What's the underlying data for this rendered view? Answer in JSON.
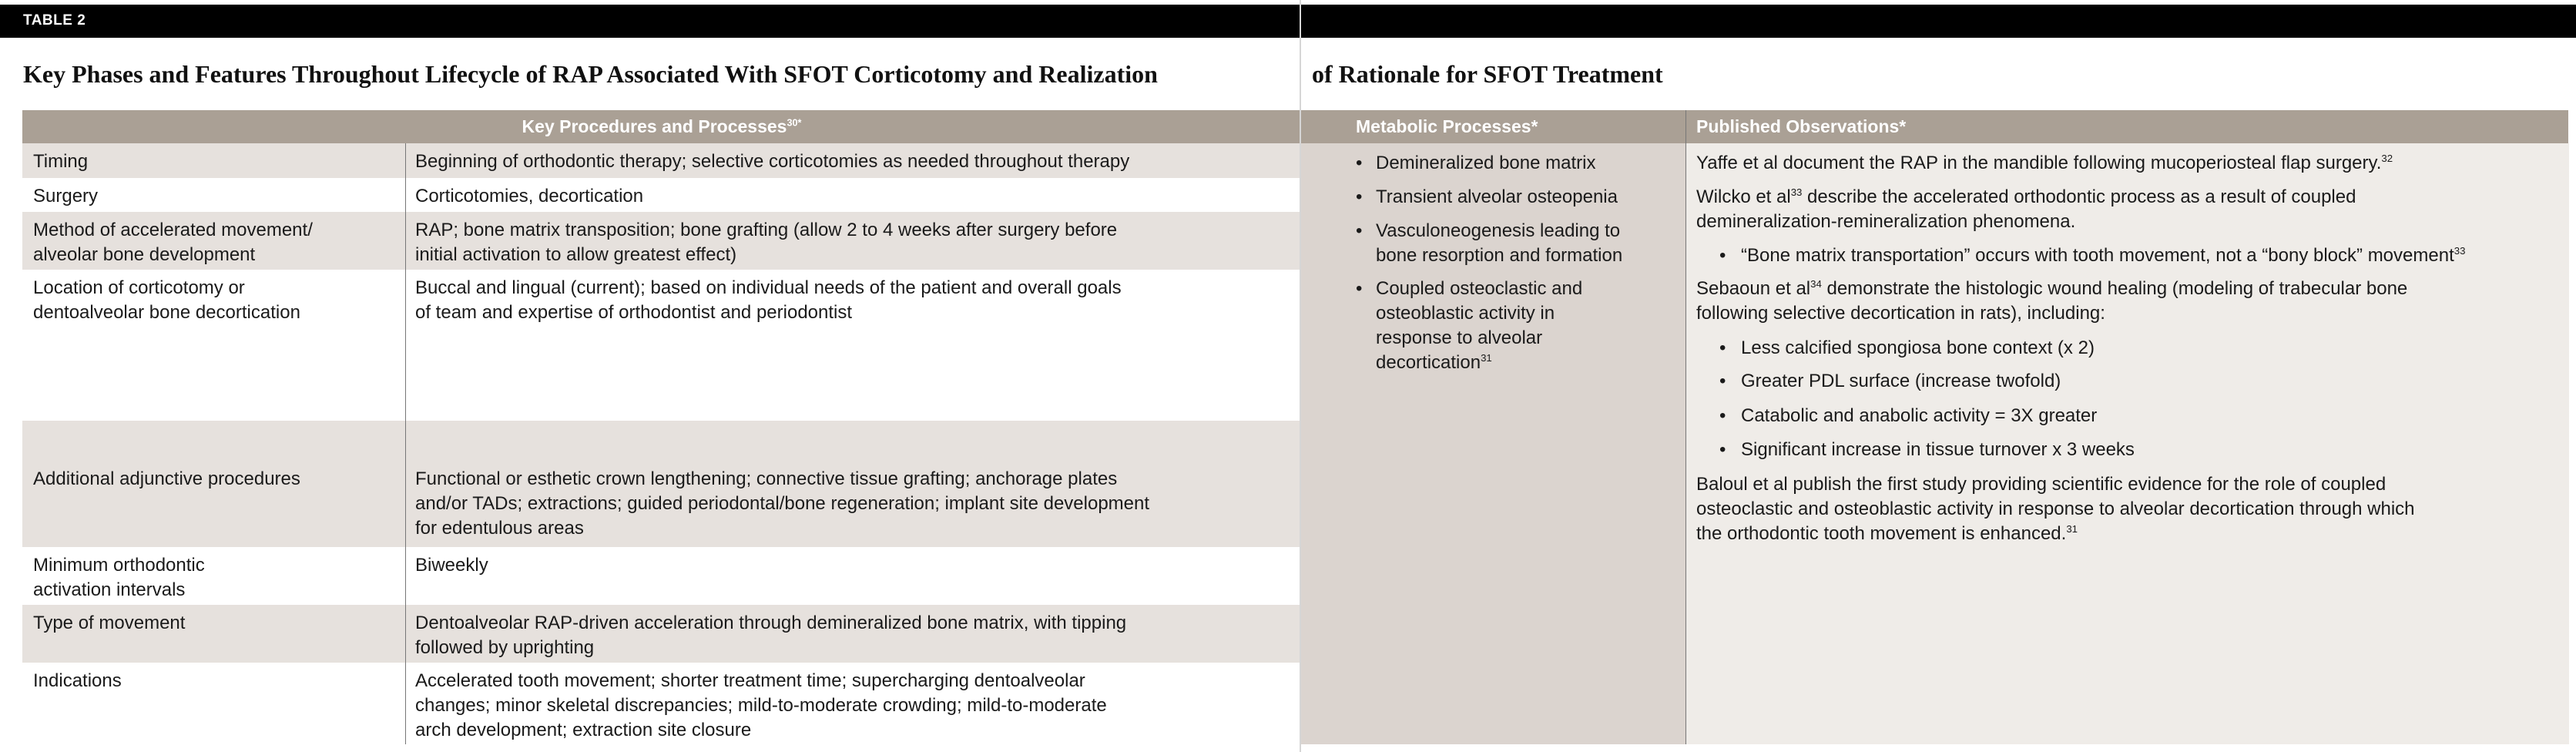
{
  "table_label": "TABLE 2",
  "title_left": "Key Phases and Features Throughout Lifecycle of RAP Associated With SFOT Corticotomy and Realization",
  "title_right": "of Rationale for SFOT Treatment",
  "bullet": "•",
  "left_table": {
    "header": {
      "text": "Key Procedures and Processes",
      "sup": "30*"
    },
    "rows": [
      {
        "label": "Timing",
        "value": "Beginning of orthodontic therapy; selective corticotomies as needed throughout therapy"
      },
      {
        "label": "Surgery",
        "value": "Corticotomies, decortication"
      },
      {
        "label": "Method of accelerated movement/\nalveolar bone development",
        "value": "RAP; bone matrix transposition; bone grafting (allow 2 to 4 weeks after surgery before\ninitial activation to allow greatest effect)"
      },
      {
        "label": "Location of corticotomy or\ndentoalveolar bone decortication",
        "value": "Buccal and lingual (current); based on individual needs of the patient and overall goals\nof team and expertise of orthodontist and periodontist"
      },
      {
        "label": "Additional adjunctive procedures",
        "value": "Functional or esthetic crown lengthening; connective tissue grafting; anchorage plates\nand/or TADs; extractions; guided periodontal/bone regeneration; implant site development\nfor edentulous areas"
      },
      {
        "label": "Minimum orthodontic\nactivation intervals",
        "value": "Biweekly"
      },
      {
        "label": "Type of movement",
        "value": "Dentoalveolar RAP-driven acceleration through demineralized bone matrix, with tipping\nfollowed by uprighting"
      },
      {
        "label": "Indications",
        "value": "Accelerated tooth movement; shorter treatment time; supercharging dentoalveolar\nchanges; minor skeletal discrepancies; mild-to-moderate crowding; mild-to-moderate\narch development; extraction site closure"
      }
    ]
  },
  "metabolic": {
    "header": "Metabolic Processes*",
    "items": [
      {
        "text": "Demineralized bone matrix",
        "sup": ""
      },
      {
        "text": "Transient alveolar osteopenia",
        "sup": ""
      },
      {
        "text": "Vasculoneogenesis leading to\nbone resorption and formation",
        "sup": ""
      },
      {
        "text": "Coupled osteoclastic and\nosteoblastic activity in\nresponse to alveolar\ndecortication",
        "sup": "31"
      }
    ]
  },
  "published": {
    "header": "Published Observations*",
    "p1": {
      "text": "Yaffe et al document the RAP in the mandible following mucoperiosteal flap surgery.",
      "sup": "32"
    },
    "p2": {
      "a": "Wilcko et al",
      "sup": "33",
      "b": " describe the accelerated orthodontic process as a result of coupled\ndemineralization-remineralization phenomena."
    },
    "p2_bullet": {
      "text": "“Bone matrix transportation” occurs with tooth movement, not a “bony block” movement",
      "sup": "33"
    },
    "p3": {
      "a": "Sebaoun et al",
      "sup": "34",
      "b": " demonstrate the histologic wound healing (modeling of trabecular bone\nfollowing selective decortication in rats), including:"
    },
    "p3_bullets": [
      "Less calcified spongiosa bone context (x 2)",
      "Greater PDL surface (increase twofold)",
      "Catabolic and anabolic activity = 3X greater",
      "Significant increase in tissue turnover x 3 weeks"
    ],
    "p4": {
      "text": "Baloul et al publish the first study providing scientific evidence for the role of coupled\nosteoclastic and osteoblastic activity in response to alveolar decortication through which\nthe orthodontic tooth movement is enhanced.",
      "sup": "31"
    }
  },
  "colors": {
    "header_bg": "#aaa095",
    "row_shade": "#e6e1dd",
    "metabolic_bg": "#dbd4cf",
    "published_bg": "#efece8",
    "bar": "#000000"
  }
}
